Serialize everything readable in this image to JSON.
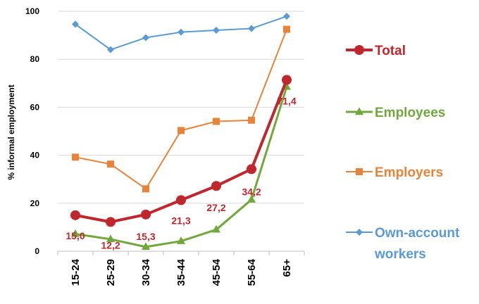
{
  "chart_data": {
    "type": "line",
    "categories": [
      "15-24",
      "25-29",
      "30-34",
      "35-44",
      "45-54",
      "55-64",
      "65+"
    ],
    "ylabel": "% informal employment",
    "ylim": [
      0,
      100
    ],
    "yticks": [
      0,
      20,
      40,
      60,
      80,
      100
    ],
    "grid": true,
    "legend_position": "right",
    "series": [
      {
        "name": "Total",
        "color": "#C0262C",
        "marker": "circle",
        "values": [
          15.0,
          12.2,
          15.3,
          21.3,
          27.2,
          34.2,
          71.4
        ],
        "data_labels": [
          "15,0",
          "12,2",
          "15,3",
          "21,3",
          "27,2",
          "34,2",
          "71,4"
        ]
      },
      {
        "name": "Employees",
        "color": "#70A83B",
        "marker": "triangle",
        "values": [
          7.2,
          5.0,
          1.8,
          4.2,
          9.0,
          21.5,
          68.5
        ]
      },
      {
        "name": "Employers",
        "color": "#E8833A",
        "marker": "square",
        "values": [
          39.2,
          36.3,
          26.0,
          50.3,
          54.1,
          54.6,
          92.5
        ]
      },
      {
        "name": "Own-account workers",
        "color": "#5B9BD5",
        "marker": "diamond",
        "values": [
          94.6,
          84.0,
          89.0,
          91.3,
          92.1,
          92.8,
          97.9
        ]
      }
    ],
    "legend": [
      {
        "line1": "Total",
        "line2": ""
      },
      {
        "line1": "Employees",
        "line2": ""
      },
      {
        "line1": "Employers",
        "line2": ""
      },
      {
        "line1": "Own-account",
        "line2": "workers"
      }
    ]
  }
}
